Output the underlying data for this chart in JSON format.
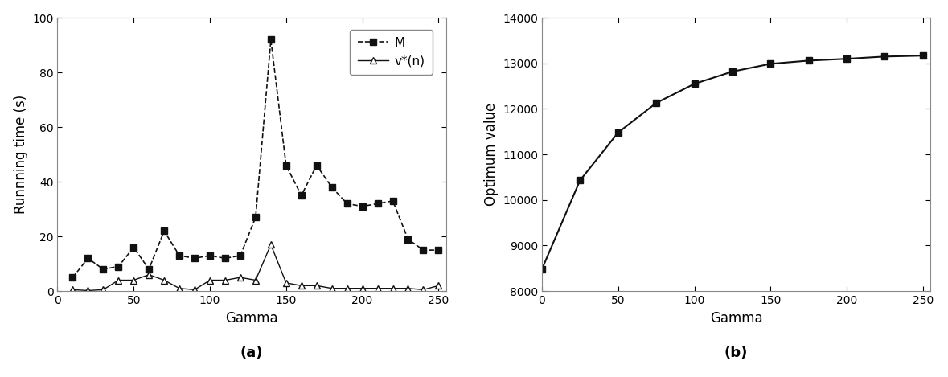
{
  "plot_a": {
    "M_x": [
      10,
      20,
      30,
      40,
      50,
      60,
      70,
      80,
      90,
      100,
      110,
      120,
      130,
      140,
      150,
      160,
      170,
      180,
      190,
      200,
      210,
      220,
      230,
      240,
      250
    ],
    "M_y": [
      5,
      12,
      8,
      9,
      16,
      8,
      22,
      13,
      12,
      13,
      12,
      13,
      27,
      92,
      46,
      35,
      46,
      38,
      32,
      31,
      32,
      33,
      19,
      15,
      15
    ],
    "vn_x": [
      10,
      20,
      30,
      40,
      50,
      60,
      70,
      80,
      90,
      100,
      110,
      120,
      130,
      140,
      150,
      160,
      170,
      180,
      190,
      200,
      210,
      220,
      230,
      240,
      250
    ],
    "vn_y": [
      0.5,
      0.2,
      0.5,
      4,
      4,
      6,
      4,
      1,
      0.5,
      4,
      4,
      5,
      4,
      17,
      3,
      2,
      2,
      1,
      1,
      1,
      1,
      1,
      1,
      0.5,
      2
    ],
    "xlabel": "Gamma",
    "ylabel": "Runnning time (s)",
    "xlim": [
      0,
      255
    ],
    "ylim": [
      0,
      100
    ],
    "yticks": [
      0,
      20,
      40,
      60,
      80,
      100
    ],
    "xticks": [
      0,
      50,
      100,
      150,
      200,
      250
    ],
    "label_a": "(a)",
    "legend_M": "M",
    "legend_vn": "v*(n)"
  },
  "plot_b": {
    "x": [
      0,
      25,
      50,
      75,
      100,
      125,
      150,
      175,
      200,
      225,
      250
    ],
    "y": [
      8480,
      10430,
      11480,
      12130,
      12550,
      12820,
      12990,
      13060,
      13100,
      13150,
      13170
    ],
    "xlabel": "Gamma",
    "ylabel": "Optimum value",
    "xlim": [
      0,
      255
    ],
    "ylim": [
      8000,
      14000
    ],
    "yticks": [
      8000,
      9000,
      10000,
      11000,
      12000,
      13000,
      14000
    ],
    "xticks": [
      0,
      50,
      100,
      150,
      200,
      250
    ],
    "label_b": "(b)"
  },
  "line_color": "#111111",
  "bg_color": "#ffffff"
}
